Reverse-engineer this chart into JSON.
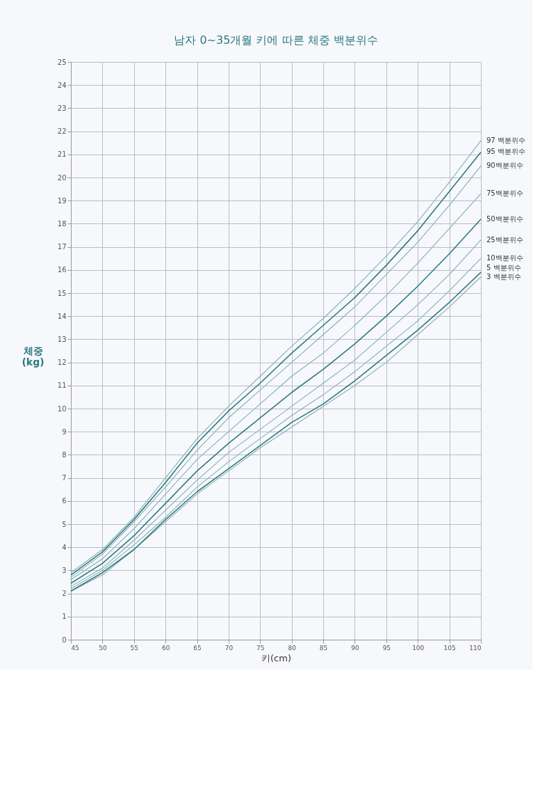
{
  "chart_data": {
    "type": "line",
    "title": "남자 0~35개월 키에 따른 체중 백분위수",
    "xlabel": "키(cm)",
    "ylabel": "체중 (kg)",
    "x": [
      45,
      50,
      55,
      60,
      65,
      70,
      75,
      80,
      85,
      90,
      95,
      100,
      105,
      110
    ],
    "xlim": [
      45,
      110
    ],
    "xticks": [
      45,
      50,
      55,
      60,
      65,
      70,
      75,
      80,
      85,
      90,
      95,
      100,
      105,
      110
    ],
    "ylim": [
      0,
      25
    ],
    "yticks": [
      0,
      1,
      2,
      3,
      4,
      5,
      6,
      7,
      8,
      9,
      10,
      11,
      12,
      13,
      14,
      15,
      16,
      17,
      18,
      19,
      20,
      21,
      22,
      23,
      24,
      25
    ],
    "grid": true,
    "legend": false,
    "marker": "none",
    "line_style": "solid",
    "series": [
      {
        "name": "3 백분위수",
        "color": "#7fb0b6",
        "values": [
          2.1,
          2.8,
          3.9,
          5.1,
          6.3,
          7.3,
          8.3,
          9.2,
          10.1,
          11.0,
          12.0,
          13.2,
          14.4,
          15.7
        ]
      },
      {
        "name": "5 백분위수",
        "color": "#2c7a80",
        "values": [
          2.1,
          2.9,
          3.9,
          5.2,
          6.4,
          7.4,
          8.4,
          9.4,
          10.2,
          11.2,
          12.3,
          13.4,
          14.6,
          15.9
        ]
      },
      {
        "name": "10백분위수",
        "color": "#7fb0b6",
        "values": [
          2.2,
          3.0,
          4.1,
          5.3,
          6.6,
          7.7,
          8.7,
          9.7,
          10.6,
          11.6,
          12.7,
          13.8,
          15.1,
          16.5
        ]
      },
      {
        "name": "25백분위수",
        "color": "#7fb0b6",
        "values": [
          2.3,
          3.1,
          4.3,
          5.6,
          6.9,
          8.1,
          9.1,
          10.1,
          11.1,
          12.1,
          13.3,
          14.5,
          15.8,
          17.3
        ]
      },
      {
        "name": "50백분위수",
        "color": "#2c7a80",
        "values": [
          2.44,
          3.3,
          4.5,
          5.9,
          7.3,
          8.5,
          9.6,
          10.7,
          11.7,
          12.8,
          14.0,
          15.3,
          16.7,
          18.2
        ]
      },
      {
        "name": "75백분위수",
        "color": "#7fb0b6",
        "values": [
          2.6,
          3.5,
          4.8,
          6.3,
          7.8,
          9.0,
          10.2,
          11.4,
          12.4,
          13.6,
          14.9,
          16.3,
          17.8,
          19.3
        ]
      },
      {
        "name": "90백분위수",
        "color": "#7fb0b6",
        "values": [
          2.7,
          3.7,
          5.1,
          6.6,
          8.2,
          9.6,
          10.8,
          12.0,
          13.2,
          14.4,
          15.8,
          17.2,
          18.8,
          20.5
        ]
      },
      {
        "name": "95 백분위수",
        "color": "#2c7a80",
        "values": [
          2.8,
          3.8,
          5.2,
          6.8,
          8.5,
          9.9,
          11.1,
          12.4,
          13.6,
          14.8,
          16.2,
          17.7,
          19.4,
          21.1
        ]
      },
      {
        "name": "97 백분위수",
        "color": "#7fb0b6",
        "values": [
          2.9,
          3.9,
          5.3,
          7.0,
          8.7,
          10.1,
          11.4,
          12.7,
          13.9,
          15.2,
          16.6,
          18.1,
          19.8,
          21.6
        ]
      }
    ]
  }
}
